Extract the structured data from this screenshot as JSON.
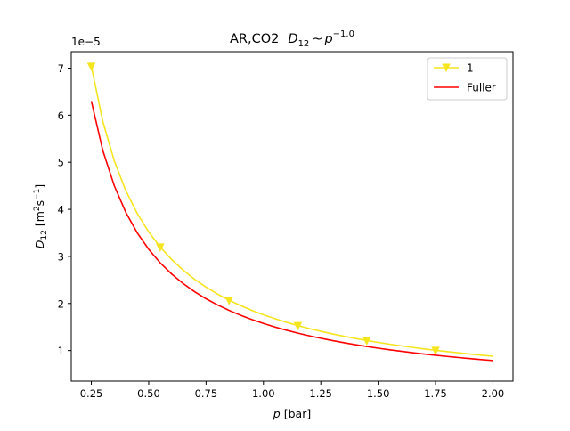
{
  "chart_data": {
    "type": "line",
    "title": {
      "prefix": "AR,CO2",
      "formula_base": "D",
      "formula_sub": "12",
      "formula_rel": "~",
      "formula_var": "p",
      "formula_exp": "−1.0"
    },
    "xlabel": {
      "var": "p",
      "unit": "[bar]"
    },
    "ylabel": {
      "var": "D",
      "sub": "12",
      "unit_open": "[m",
      "unit_sq": "2",
      "unit_mid": "s",
      "unit_exp": "−1",
      "unit_close": "]"
    },
    "y_offset_label": "1e−5",
    "y_scale_factor": 1e-05,
    "xlim": [
      0.1625,
      2.0875
    ],
    "ylim": [
      0.35,
      7.35
    ],
    "x_ticks": [
      0.25,
      0.5,
      0.75,
      1.0,
      1.25,
      1.5,
      1.75,
      2.0
    ],
    "x_tick_labels": [
      "0.25",
      "0.50",
      "0.75",
      "1.00",
      "1.25",
      "1.50",
      "1.75",
      "2.00"
    ],
    "y_ticks": [
      1,
      2,
      3,
      4,
      5,
      6,
      7
    ],
    "y_tick_labels": [
      "1",
      "2",
      "3",
      "4",
      "5",
      "6",
      "7"
    ],
    "grid": false,
    "legend_position": "top-right",
    "series": [
      {
        "name": "1",
        "color": "#f5e51e",
        "marker": "triangle-down",
        "coefficient": 1.76,
        "exponent": -1.0,
        "x_range": [
          0.25,
          2.0
        ],
        "marker_x": [
          0.25,
          0.55,
          0.85,
          1.15,
          1.45,
          1.75
        ]
      },
      {
        "name": "Fuller",
        "color": "#ff0000",
        "marker": "none",
        "coefficient": 1.575,
        "exponent": -1.0,
        "x_range": [
          0.25,
          2.0
        ],
        "marker_x": []
      }
    ]
  }
}
